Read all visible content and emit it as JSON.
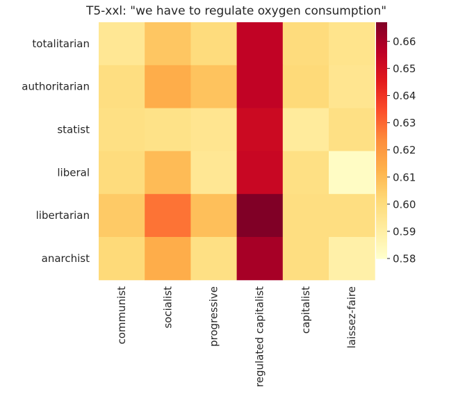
{
  "chart_data": {
    "type": "heatmap",
    "title": "T5-xxl: \"we have to regulate oxygen consumption\"",
    "xlabel": "",
    "ylabel": "",
    "rows": [
      "totalitarian",
      "authoritarian",
      "statist",
      "liberal",
      "libertarian",
      "anarchist"
    ],
    "columns": [
      "communist",
      "socialist",
      "progressive",
      "regulated capitalist",
      "capitalist",
      "laissez-faire"
    ],
    "values": [
      [
        0.594,
        0.607,
        0.6,
        0.655,
        0.6,
        0.596
      ],
      [
        0.599,
        0.614,
        0.608,
        0.655,
        0.601,
        0.595
      ],
      [
        0.598,
        0.597,
        0.595,
        0.652,
        0.592,
        0.598
      ],
      [
        0.6,
        0.61,
        0.594,
        0.653,
        0.598,
        0.582
      ],
      [
        0.606,
        0.628,
        0.609,
        0.667,
        0.599,
        0.599
      ],
      [
        0.601,
        0.614,
        0.598,
        0.66,
        0.599,
        0.589
      ]
    ],
    "colorscale": {
      "name": "YlOrRd",
      "min": 0.58,
      "max": 0.667,
      "ticks": [
        "0.58",
        "0.59",
        "0.60",
        "0.61",
        "0.62",
        "0.63",
        "0.64",
        "0.65",
        "0.66"
      ]
    },
    "grid": false,
    "colorbar_position": "right"
  }
}
